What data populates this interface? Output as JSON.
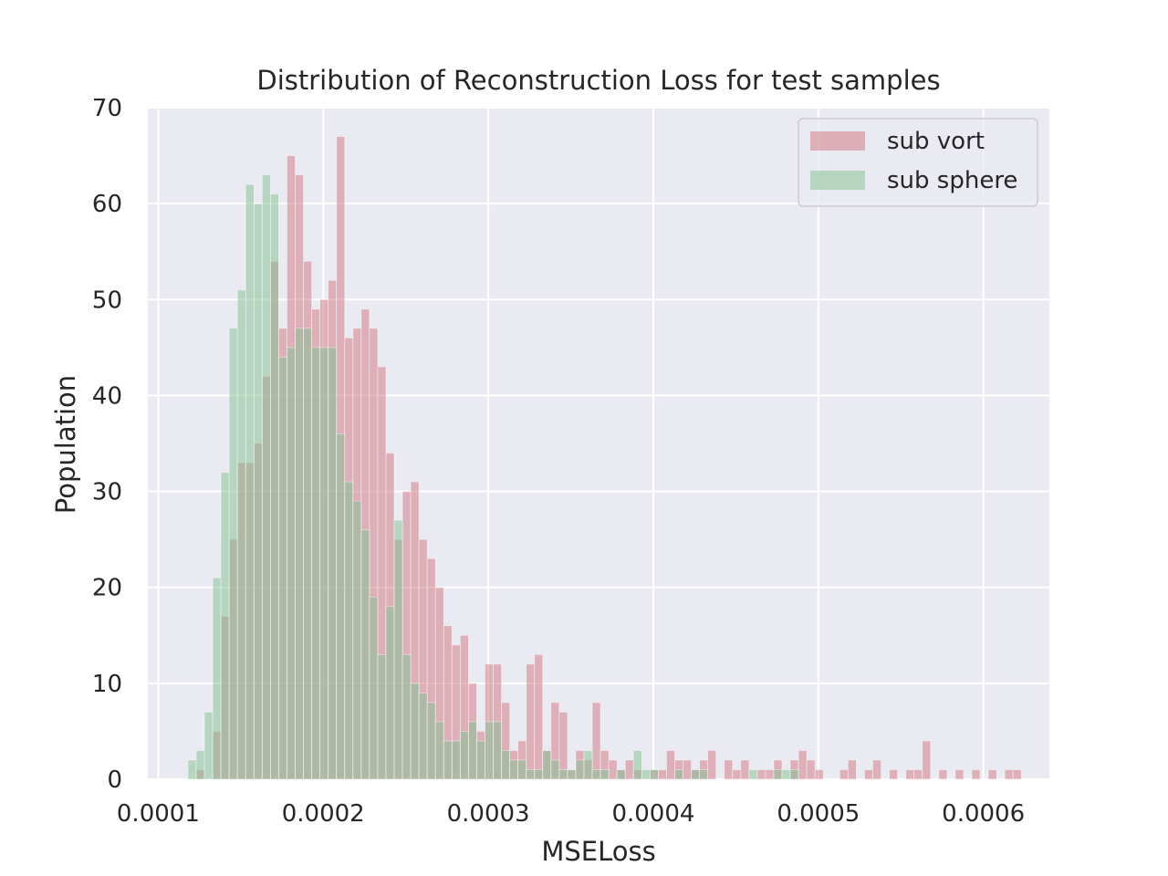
{
  "chart_data": {
    "type": "bar",
    "subtype": "overlapping-histogram",
    "title": "Distribution of Reconstruction Loss for test samples",
    "xlabel": "MSELoss",
    "ylabel": "Population",
    "xlim": [
      9.37e-05,
      0.00064
    ],
    "ylim": [
      0,
      70
    ],
    "xticks": [
      "0.0001",
      "0.0002",
      "0.0003",
      "0.0004",
      "0.0005",
      "0.0006"
    ],
    "xtick_values": [
      0.0001,
      0.0002,
      0.0003,
      0.0004,
      0.0005,
      0.0006
    ],
    "yticks": [
      "0",
      "10",
      "20",
      "30",
      "40",
      "50",
      "60",
      "70"
    ],
    "ytick_values": [
      0,
      10,
      20,
      30,
      40,
      50,
      60,
      70
    ],
    "grid": true,
    "legend_position": "top-right",
    "bin_width": 5e-06,
    "series": [
      {
        "name": "sub vort",
        "color": "#d0757f",
        "alpha": 0.5,
        "bins": [
          [
            0.000123,
            1
          ],
          [
            0.000133,
            5
          ],
          [
            0.000138,
            17
          ],
          [
            0.000143,
            25
          ],
          [
            0.000148,
            33
          ],
          [
            0.000153,
            33
          ],
          [
            0.000158,
            35
          ],
          [
            0.000163,
            42
          ],
          [
            0.000168,
            54
          ],
          [
            0.000173,
            47
          ],
          [
            0.000178,
            65
          ],
          [
            0.000183,
            63
          ],
          [
            0.000188,
            54
          ],
          [
            0.000193,
            49
          ],
          [
            0.000198,
            50
          ],
          [
            0.000203,
            52
          ],
          [
            0.000208,
            67
          ],
          [
            0.000213,
            46
          ],
          [
            0.000218,
            47
          ],
          [
            0.000223,
            49
          ],
          [
            0.000228,
            47
          ],
          [
            0.000233,
            43
          ],
          [
            0.000238,
            34
          ],
          [
            0.000243,
            25
          ],
          [
            0.000248,
            30
          ],
          [
            0.000253,
            31
          ],
          [
            0.000258,
            25
          ],
          [
            0.000263,
            23
          ],
          [
            0.000268,
            20
          ],
          [
            0.000273,
            16
          ],
          [
            0.000278,
            14
          ],
          [
            0.000283,
            15
          ],
          [
            0.000288,
            10
          ],
          [
            0.000293,
            5
          ],
          [
            0.000298,
            12
          ],
          [
            0.000303,
            12
          ],
          [
            0.000308,
            8
          ],
          [
            0.000313,
            3
          ],
          [
            0.000318,
            4
          ],
          [
            0.000323,
            12
          ],
          [
            0.000328,
            13
          ],
          [
            0.000333,
            3
          ],
          [
            0.000338,
            8
          ],
          [
            0.000343,
            7
          ],
          [
            0.000348,
            1
          ],
          [
            0.000353,
            3
          ],
          [
            0.000358,
            2
          ],
          [
            0.000363,
            8
          ],
          [
            0.000368,
            3
          ],
          [
            0.000373,
            2
          ],
          [
            0.000378,
            1
          ],
          [
            0.000383,
            2
          ],
          [
            0.000388,
            1
          ],
          [
            0.000398,
            1
          ],
          [
            0.000403,
            1
          ],
          [
            0.000408,
            3
          ],
          [
            0.000413,
            2
          ],
          [
            0.000418,
            2
          ],
          [
            0.000423,
            1
          ],
          [
            0.000428,
            2
          ],
          [
            0.000433,
            3
          ],
          [
            0.000443,
            2
          ],
          [
            0.000448,
            1
          ],
          [
            0.000453,
            2
          ],
          [
            0.000463,
            1
          ],
          [
            0.000468,
            1
          ],
          [
            0.000473,
            2
          ],
          [
            0.000483,
            2
          ],
          [
            0.000488,
            3
          ],
          [
            0.000493,
            2
          ],
          [
            0.000498,
            1
          ],
          [
            0.000513,
            1
          ],
          [
            0.000518,
            2
          ],
          [
            0.000528,
            1
          ],
          [
            0.000533,
            2
          ],
          [
            0.000543,
            1
          ],
          [
            0.000553,
            1
          ],
          [
            0.000558,
            1
          ],
          [
            0.000563,
            4
          ],
          [
            0.000573,
            1
          ],
          [
            0.000583,
            1
          ],
          [
            0.000593,
            1
          ],
          [
            0.000603,
            1
          ],
          [
            0.000613,
            1
          ],
          [
            0.000618,
            1
          ]
        ]
      },
      {
        "name": "sub sphere",
        "color": "#7fbf8f",
        "alpha": 0.5,
        "bins": [
          [
            0.000118,
            2
          ],
          [
            0.000123,
            3
          ],
          [
            0.000128,
            7
          ],
          [
            0.000133,
            21
          ],
          [
            0.000138,
            32
          ],
          [
            0.000143,
            47
          ],
          [
            0.000148,
            51
          ],
          [
            0.000153,
            62
          ],
          [
            0.000158,
            60
          ],
          [
            0.000163,
            63
          ],
          [
            0.000168,
            61
          ],
          [
            0.000173,
            44
          ],
          [
            0.000178,
            45
          ],
          [
            0.000183,
            47
          ],
          [
            0.000188,
            47
          ],
          [
            0.000193,
            45
          ],
          [
            0.000198,
            45
          ],
          [
            0.000203,
            45
          ],
          [
            0.000208,
            36
          ],
          [
            0.000213,
            31
          ],
          [
            0.000218,
            29
          ],
          [
            0.000223,
            26
          ],
          [
            0.000228,
            19
          ],
          [
            0.000233,
            13
          ],
          [
            0.000238,
            18
          ],
          [
            0.000243,
            27
          ],
          [
            0.000248,
            13
          ],
          [
            0.000253,
            10
          ],
          [
            0.000258,
            9
          ],
          [
            0.000263,
            8
          ],
          [
            0.000268,
            6
          ],
          [
            0.000273,
            4
          ],
          [
            0.000278,
            4
          ],
          [
            0.000283,
            5
          ],
          [
            0.000288,
            6
          ],
          [
            0.000293,
            4
          ],
          [
            0.000298,
            6
          ],
          [
            0.000303,
            6
          ],
          [
            0.000308,
            3
          ],
          [
            0.000313,
            2
          ],
          [
            0.000318,
            2
          ],
          [
            0.000323,
            1
          ],
          [
            0.000328,
            1
          ],
          [
            0.000333,
            3
          ],
          [
            0.000338,
            2
          ],
          [
            0.000343,
            1
          ],
          [
            0.000348,
            1
          ],
          [
            0.000353,
            2
          ],
          [
            0.000358,
            3
          ],
          [
            0.000363,
            1
          ],
          [
            0.000368,
            1
          ],
          [
            0.000378,
            1
          ],
          [
            0.000388,
            3
          ],
          [
            0.000393,
            1
          ],
          [
            0.000398,
            1
          ],
          [
            0.000413,
            1
          ],
          [
            0.000423,
            1
          ],
          [
            0.000428,
            1
          ],
          [
            0.000458,
            1
          ],
          [
            0.000473,
            1
          ],
          [
            0.000478,
            1
          ],
          [
            0.000483,
            1
          ]
        ]
      }
    ]
  }
}
